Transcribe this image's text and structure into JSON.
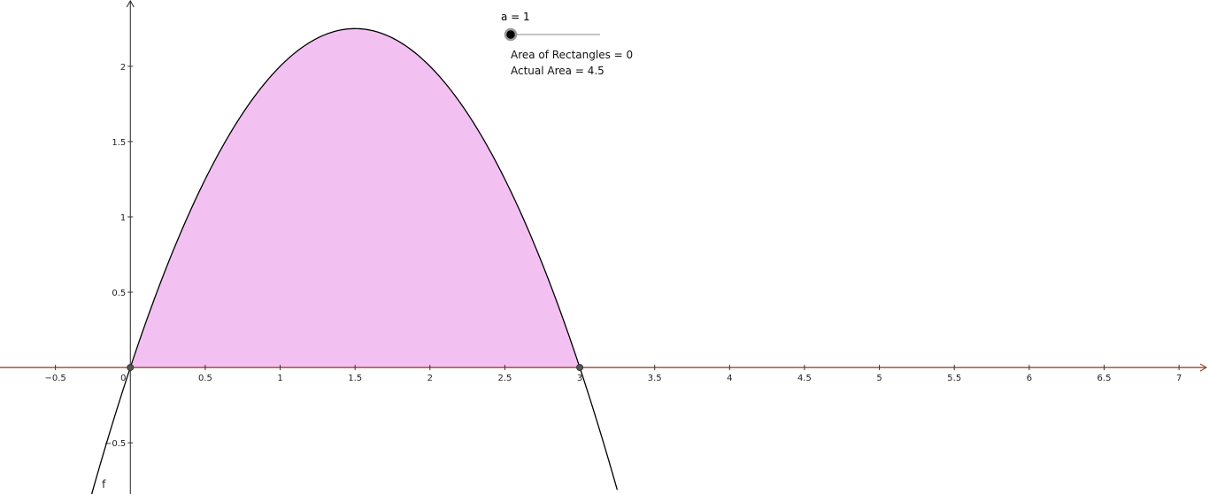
{
  "slider": {
    "label": "a = 1",
    "value": 1,
    "min": 1,
    "max": 20
  },
  "texts": {
    "rectangles_area": "Area of Rectangles = 0",
    "actual_area": "Actual Area = 4.5"
  },
  "colors": {
    "fill": "#f2c1f2",
    "curve": "#000000",
    "x_axis": "#8b3a1a",
    "y_axis": "#222222",
    "point": "#333333",
    "slider_knob": "#000000",
    "slider_track": "#888888"
  },
  "chart_data": {
    "type": "area",
    "title": "",
    "xlabel": "",
    "ylabel": "",
    "function_label": "f",
    "function": "f(x) = -x^2 + 3x",
    "x": [
      -0.3,
      0,
      0.25,
      0.5,
      0.75,
      1,
      1.25,
      1.5,
      1.75,
      2,
      2.25,
      2.5,
      2.75,
      3,
      3.25
    ],
    "y": [
      -0.99,
      0,
      0.6875,
      1.25,
      1.6875,
      2,
      2.1875,
      2.25,
      2.1875,
      2,
      1.6875,
      1.25,
      0.6875,
      0,
      -0.8125
    ],
    "shaded_interval": [
      0,
      3
    ],
    "shaded_area": 4.5,
    "points": [
      {
        "x": 0,
        "y": 0
      },
      {
        "x": 3,
        "y": 0
      }
    ],
    "xlim": [
      -0.87,
      7.2
    ],
    "ylim": [
      -0.84,
      2.44
    ],
    "x_ticks": [
      {
        "value": -0.5,
        "label": "−0.5"
      },
      {
        "value": 0,
        "label": "0"
      },
      {
        "value": 0.5,
        "label": "0.5"
      },
      {
        "value": 1,
        "label": "1"
      },
      {
        "value": 1.5,
        "label": "1.5"
      },
      {
        "value": 2,
        "label": "2"
      },
      {
        "value": 2.5,
        "label": "2.5"
      },
      {
        "value": 3,
        "label": "3"
      },
      {
        "value": 3.5,
        "label": "3.5"
      },
      {
        "value": 4,
        "label": "4"
      },
      {
        "value": 4.5,
        "label": "4.5"
      },
      {
        "value": 5,
        "label": "5"
      },
      {
        "value": 5.5,
        "label": "5.5"
      },
      {
        "value": 6,
        "label": "6"
      },
      {
        "value": 6.5,
        "label": "6.5"
      },
      {
        "value": 7,
        "label": "7"
      }
    ],
    "y_ticks": [
      {
        "value": -0.5,
        "label": "−0.5"
      },
      {
        "value": 0.5,
        "label": "0.5"
      },
      {
        "value": 1,
        "label": "1"
      },
      {
        "value": 1.5,
        "label": "1.5"
      },
      {
        "value": 2,
        "label": "2"
      }
    ],
    "grid": false,
    "legend": "none"
  }
}
